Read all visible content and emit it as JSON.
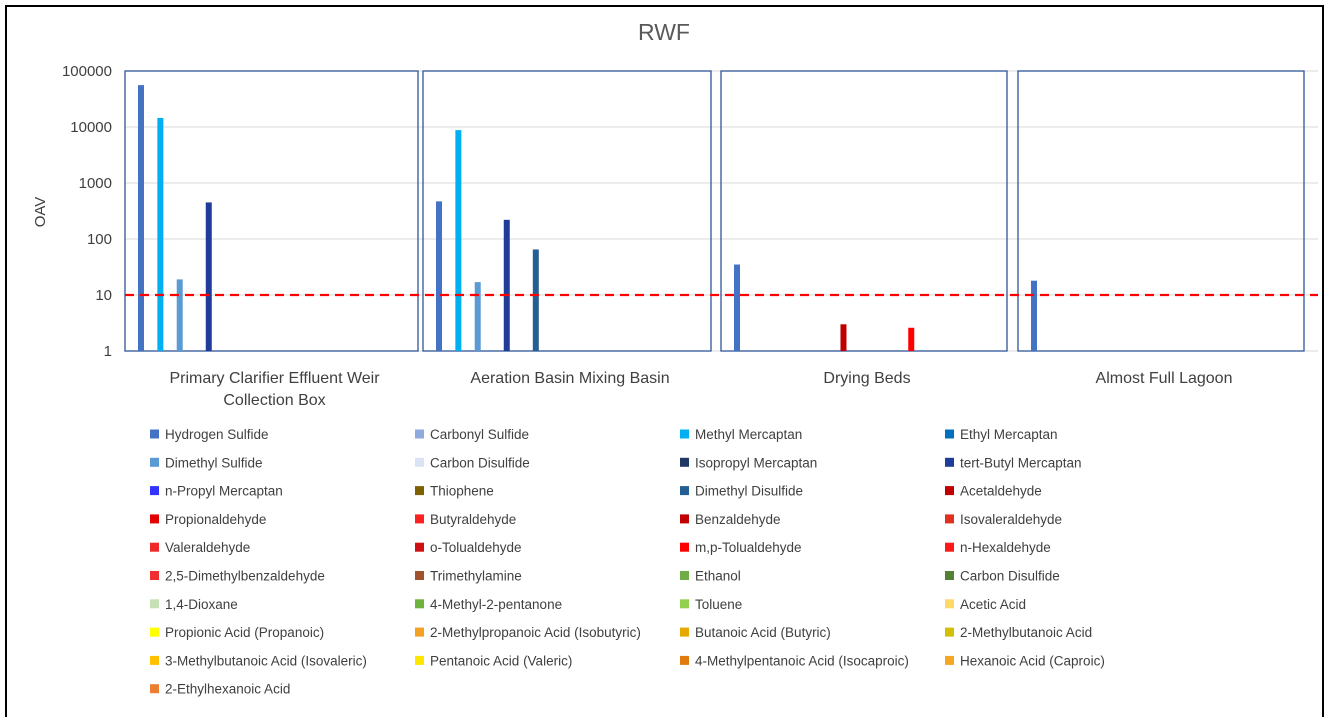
{
  "chart_data": {
    "type": "bar",
    "title": "RWF",
    "ylabel": "OAV",
    "yscale": "log",
    "ylim": [
      1,
      100000
    ],
    "yticks": [
      "1",
      "10",
      "100",
      "1000",
      "10000",
      "100000"
    ],
    "threshold": {
      "value": 10,
      "color": "#FF0000",
      "style": "dashed"
    },
    "categories": [
      [
        "Primary Clarifier Effluent Weir",
        "Collection Box"
      ],
      [
        "Aeration Basin Mixing Basin"
      ],
      [
        "Drying Beds"
      ],
      [
        "Almost Full Lagoon"
      ]
    ],
    "series": [
      {
        "name": "Hydrogen Sulfide",
        "color": "#4472C4",
        "values": [
          56000,
          470,
          35,
          18
        ]
      },
      {
        "name": "Carbonyl Sulfide",
        "color": "#8FAADC",
        "values": [
          null,
          null,
          null,
          null
        ]
      },
      {
        "name": "Methyl Mercaptan",
        "color": "#00B0F0",
        "values": [
          14500,
          8800,
          null,
          null
        ]
      },
      {
        "name": "Ethyl Mercaptan",
        "color": "#0070C0",
        "values": [
          null,
          null,
          null,
          null
        ]
      },
      {
        "name": "Dimethyl Sulfide",
        "color": "#5B9BD5",
        "values": [
          19,
          17,
          null,
          null
        ]
      },
      {
        "name": "Carbon Disulfide",
        "color": "#DAE3F3",
        "values": [
          null,
          null,
          null,
          null
        ]
      },
      {
        "name": "Isopropyl Mercaptan",
        "color": "#203864",
        "values": [
          null,
          null,
          null,
          null
        ]
      },
      {
        "name": "tert-Butyl Mercaptan",
        "color": "#1F3C99",
        "values": [
          450,
          220,
          null,
          null
        ]
      },
      {
        "name": "n-Propyl Mercaptan",
        "color": "#3333FF",
        "values": [
          null,
          null,
          null,
          null
        ]
      },
      {
        "name": "Thiophene",
        "color": "#7F6000",
        "values": [
          null,
          null,
          null,
          null
        ]
      },
      {
        "name": "Dimethyl Disulfide",
        "color": "#255E91",
        "values": [
          null,
          65,
          null,
          null
        ]
      },
      {
        "name": "Acetaldehyde",
        "color": "#C00000",
        "values": [
          null,
          null,
          3,
          null
        ]
      },
      {
        "name": "Propionaldehyde",
        "color": "#E00000",
        "values": [
          null,
          null,
          null,
          null
        ]
      },
      {
        "name": "Butyraldehyde",
        "color": "#FF2020",
        "values": [
          null,
          null,
          null,
          null
        ]
      },
      {
        "name": "Benzaldehyde",
        "color": "#C00000",
        "values": [
          null,
          null,
          null,
          null
        ]
      },
      {
        "name": "Isovaleraldehyde",
        "color": "#E03020",
        "values": [
          null,
          null,
          null,
          null
        ]
      },
      {
        "name": "Valeraldehyde",
        "color": "#F02828",
        "values": [
          null,
          null,
          null,
          null
        ]
      },
      {
        "name": "o-Tolualdehyde",
        "color": "#D01010",
        "values": [
          null,
          null,
          null,
          null
        ]
      },
      {
        "name": "m,p-Tolualdehyde",
        "color": "#FF0000",
        "values": [
          null,
          null,
          2.6,
          null
        ]
      },
      {
        "name": "n-Hexaldehyde",
        "color": "#FF1818",
        "values": [
          null,
          null,
          null,
          null
        ]
      },
      {
        "name": "2,5-Dimethylbenzaldehyde",
        "color": "#F03030",
        "values": [
          null,
          null,
          null,
          null
        ]
      },
      {
        "name": "Trimethylamine",
        "color": "#A0522D",
        "values": [
          null,
          null,
          null,
          null
        ]
      },
      {
        "name": "Ethanol",
        "color": "#70AD47",
        "values": [
          null,
          null,
          null,
          null
        ]
      },
      {
        "name": "Carbon Disulfide",
        "color": "#548235",
        "values": [
          null,
          null,
          null,
          null
        ]
      },
      {
        "name": "1,4-Dioxane",
        "color": "#C5E0B4",
        "values": [
          null,
          null,
          null,
          null
        ]
      },
      {
        "name": "4-Methyl-2-pentanone",
        "color": "#6CB33F",
        "values": [
          null,
          null,
          null,
          null
        ]
      },
      {
        "name": "Toluene",
        "color": "#92D050",
        "values": [
          null,
          null,
          null,
          null
        ]
      },
      {
        "name": "Acetic Acid",
        "color": "#FFD966",
        "values": [
          null,
          null,
          null,
          null
        ]
      },
      {
        "name": "Propionic Acid (Propanoic)",
        "color": "#FFFF00",
        "values": [
          null,
          null,
          null,
          null
        ]
      },
      {
        "name": "2-Methylpropanoic Acid (Isobutyric)",
        "color": "#F4A020",
        "values": [
          null,
          null,
          null,
          null
        ]
      },
      {
        "name": "Butanoic Acid (Butyric)",
        "color": "#E5A800",
        "values": [
          null,
          null,
          null,
          null
        ]
      },
      {
        "name": "2-Methylbutanoic Acid",
        "color": "#D4C000",
        "values": [
          null,
          null,
          null,
          null
        ]
      },
      {
        "name": "3-Methylbutanoic Acid (Isovaleric)",
        "color": "#FFC000",
        "values": [
          null,
          null,
          null,
          null
        ]
      },
      {
        "name": "Pentanoic Acid (Valeric)",
        "color": "#FFE600",
        "values": [
          null,
          null,
          null,
          null
        ]
      },
      {
        "name": "4-Methylpentanoic Acid (Isocaproic)",
        "color": "#E07B10",
        "values": [
          null,
          null,
          null,
          null
        ]
      },
      {
        "name": "Hexanoic Acid (Caproic)",
        "color": "#F5A623",
        "values": [
          null,
          null,
          null,
          null
        ]
      },
      {
        "name": "2-Ethylhexanoic Acid",
        "color": "#ED7D31",
        "values": [
          null,
          null,
          null,
          null
        ]
      }
    ],
    "legend_position": "bottom",
    "grid": true
  }
}
